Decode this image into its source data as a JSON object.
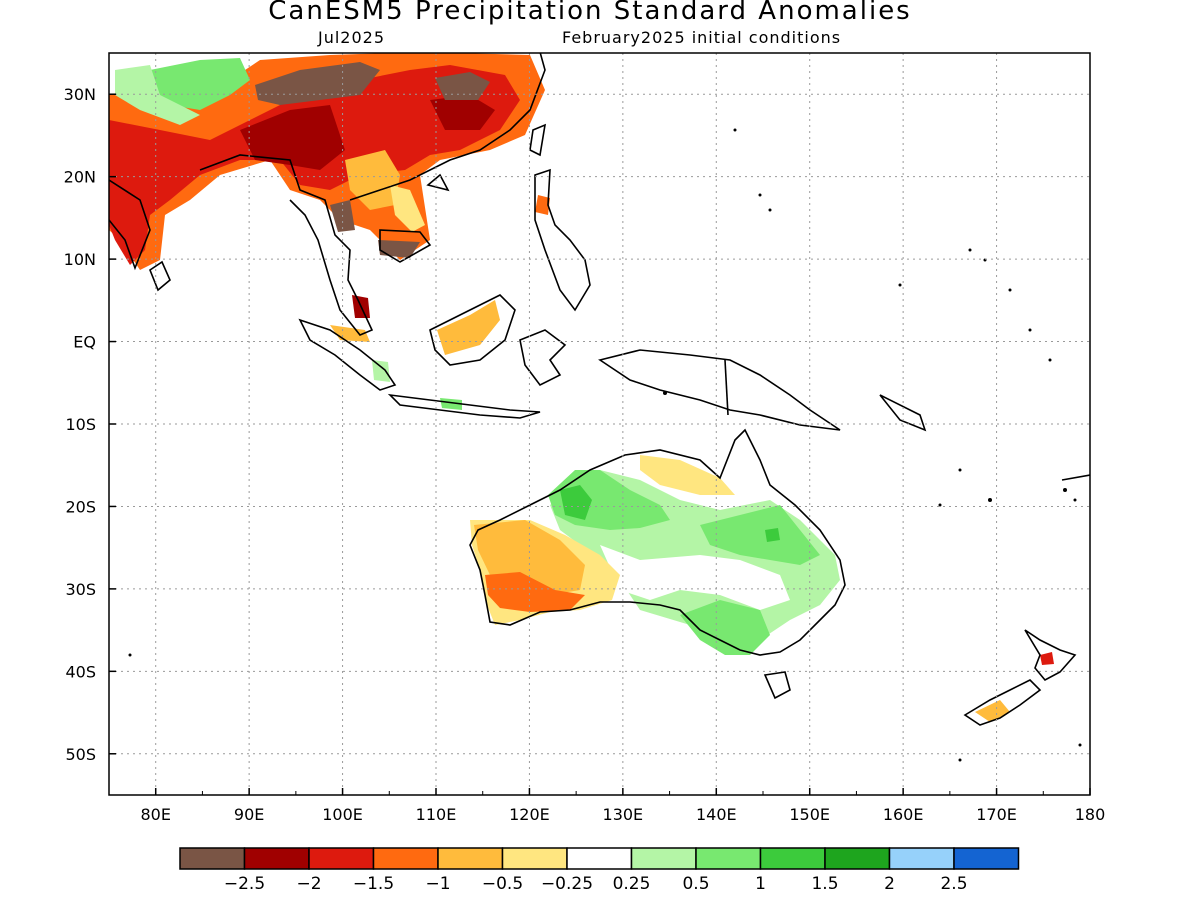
{
  "title": "CanESM5 Precipitation Standard Anomalies",
  "subtitle_left": "Jul2025",
  "subtitle_right": "February2025 initial conditions",
  "lon_labels": [
    "80E",
    "90E",
    "100E",
    "110E",
    "120E",
    "130E",
    "140E",
    "150E",
    "160E",
    "170E",
    "180"
  ],
  "lon_values": [
    80,
    90,
    100,
    110,
    120,
    130,
    140,
    150,
    160,
    170,
    180
  ],
  "lat_labels": [
    "30N",
    "20N",
    "10N",
    "EQ",
    "10S",
    "20S",
    "30S",
    "40S",
    "50S"
  ],
  "lat_values": [
    30,
    20,
    10,
    0,
    -10,
    -20,
    -30,
    -40,
    -50
  ],
  "map_extent": {
    "lon_min": 75,
    "lon_max": 180,
    "lat_min": -55,
    "lat_max": 35
  },
  "colorbar": {
    "colors": [
      "#7a5545",
      "#a00000",
      "#dd1a0e",
      "#ff6a10",
      "#ffbb3c",
      "#ffe680",
      "#ffffff",
      "#b4f5a6",
      "#78e870",
      "#3ccb3c",
      "#1ea51e",
      "#96d1fa",
      "#1464d2"
    ],
    "labels": [
      "−2.5",
      "−2",
      "−1.5",
      "−1",
      "−0.5",
      "−0.25",
      "0.25",
      "0.5",
      "1",
      "1.5",
      "2",
      "2.5"
    ]
  }
}
